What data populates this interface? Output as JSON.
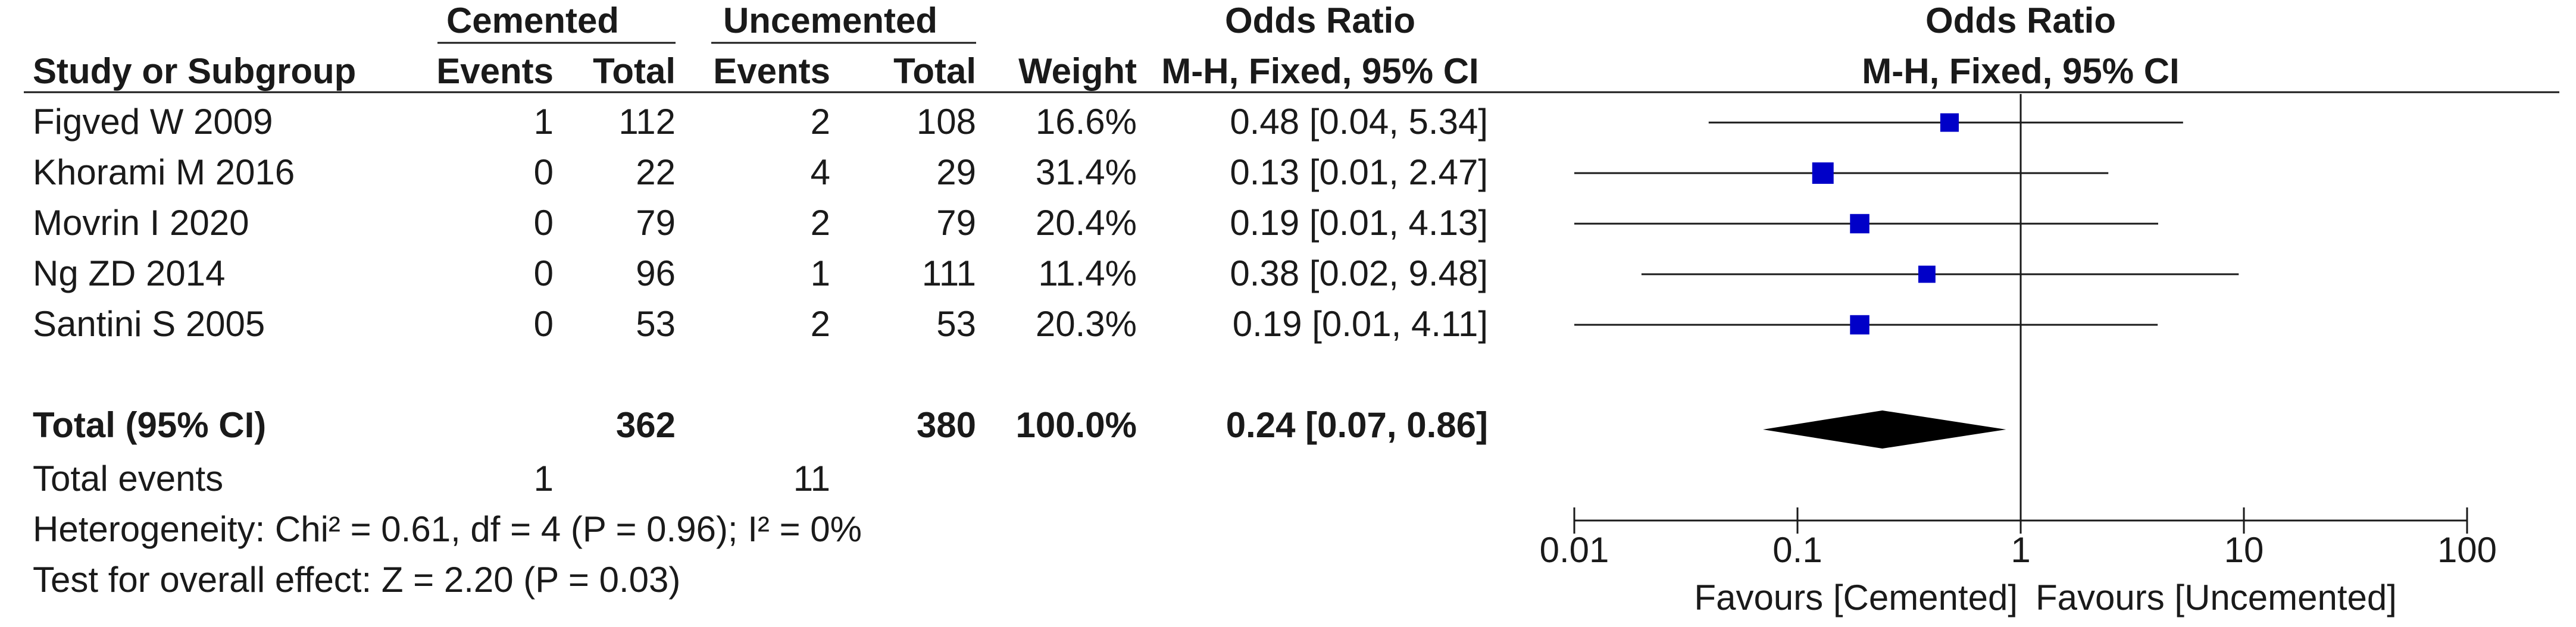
{
  "headers": {
    "group1": "Cemented",
    "group2": "Uncemented",
    "effect": "Odds Ratio",
    "plot_title": "Odds Ratio",
    "study": "Study or Subgroup",
    "events": "Events",
    "total": "Total",
    "weight": "Weight",
    "method": "M-H, Fixed, 95% CI",
    "plot_method": "M-H, Fixed, 95% CI"
  },
  "studies": [
    {
      "name": "Figved W 2009",
      "e1": "1",
      "n1": "112",
      "e2": "2",
      "n2": "108",
      "weight": "16.6%",
      "ci_text": "0.48 [0.04, 5.34]"
    },
    {
      "name": "Khorami M 2016",
      "e1": "0",
      "n1": "22",
      "e2": "4",
      "n2": "29",
      "weight": "31.4%",
      "ci_text": "0.13 [0.01, 2.47]"
    },
    {
      "name": "Movrin I 2020",
      "e1": "0",
      "n1": "79",
      "e2": "2",
      "n2": "79",
      "weight": "20.4%",
      "ci_text": "0.19 [0.01, 4.13]"
    },
    {
      "name": "Ng ZD 2014",
      "e1": "0",
      "n1": "96",
      "e2": "1",
      "n2": "111",
      "weight": "11.4%",
      "ci_text": "0.38 [0.02, 9.48]"
    },
    {
      "name": "Santini S 2005",
      "e1": "0",
      "n1": "53",
      "e2": "2",
      "n2": "53",
      "weight": "20.3%",
      "ci_text": "0.19 [0.01, 4.11]"
    }
  ],
  "total": {
    "label": "Total (95% CI)",
    "n1": "362",
    "n2": "380",
    "weight": "100.0%",
    "ci_text": "0.24 [0.07, 0.86]"
  },
  "total_events": {
    "label": "Total events",
    "e1": "1",
    "e2": "11"
  },
  "heterogeneity": "Heterogeneity: Chi² = 0.61, df = 4 (P = 0.96); I² = 0%",
  "overall_effect": "Test for overall effect: Z = 2.20 (P = 0.03)",
  "axis": {
    "favours_left": "Favours [Cemented]",
    "favours_right": "Favours [Uncemented]"
  },
  "colors": {
    "marker": "#0000c8",
    "line": "#1a1a1a",
    "diamond": "#000000"
  },
  "chart_data": {
    "type": "forest",
    "scale": "log",
    "xlim": [
      0.01,
      100
    ],
    "ticks": [
      0.01,
      0.1,
      1,
      10,
      100
    ],
    "tick_labels": [
      "0.01",
      "0.1",
      "1",
      "10",
      "100"
    ],
    "null_line": 1,
    "studies": [
      {
        "name": "Figved W 2009",
        "or": 0.48,
        "lo": 0.04,
        "hi": 5.34,
        "weight": 16.6
      },
      {
        "name": "Khorami M 2016",
        "or": 0.13,
        "lo": 0.01,
        "hi": 2.47,
        "weight": 31.4
      },
      {
        "name": "Movrin I 2020",
        "or": 0.19,
        "lo": 0.01,
        "hi": 4.13,
        "weight": 20.4
      },
      {
        "name": "Ng ZD 2014",
        "or": 0.38,
        "lo": 0.02,
        "hi": 9.48,
        "weight": 11.4
      },
      {
        "name": "Santini S 2005",
        "or": 0.19,
        "lo": 0.01,
        "hi": 4.11,
        "weight": 20.3
      }
    ],
    "pooled": {
      "or": 0.24,
      "lo": 0.07,
      "hi": 0.86
    }
  }
}
